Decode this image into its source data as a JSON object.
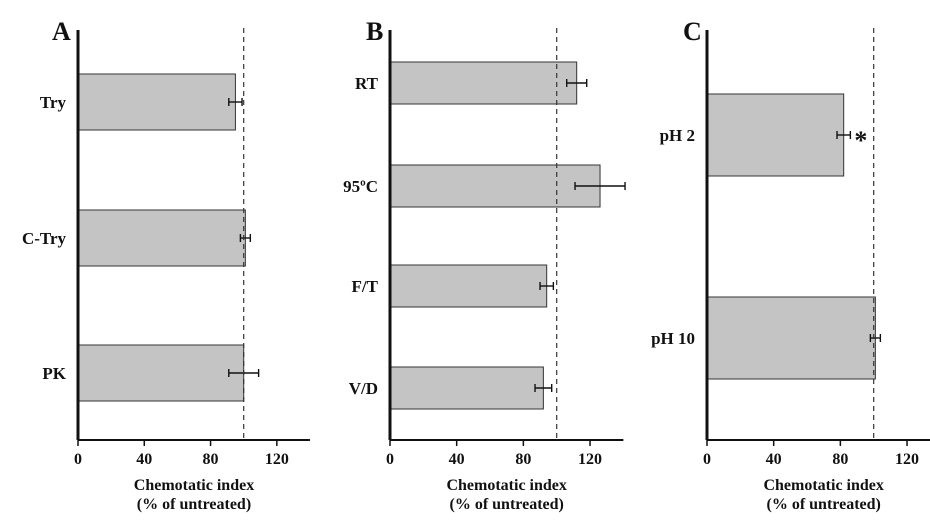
{
  "chart_data": [
    {
      "type": "bar",
      "orientation": "horizontal",
      "panel": "A",
      "categories": [
        "Try",
        "C-Try",
        "PK"
      ],
      "values": [
        95,
        101,
        100
      ],
      "errors": [
        4,
        3,
        9
      ],
      "significant": [
        "",
        "",
        ""
      ],
      "xlabel_line1": "Chemotatic index",
      "xlabel_line2": "(% of untreated)",
      "xlim": [
        0,
        140
      ],
      "xticks": [
        0,
        40,
        80,
        120
      ],
      "reference_line": 100,
      "bar_color": "#c4c4c4"
    },
    {
      "type": "bar",
      "orientation": "horizontal",
      "panel": "B",
      "categories": [
        "RT",
        "95ºC",
        "F/T",
        "V/D"
      ],
      "values": [
        112,
        126,
        94,
        92
      ],
      "errors": [
        6,
        15,
        4,
        5
      ],
      "significant": [
        "",
        "",
        "",
        ""
      ],
      "xlabel_line1": "Chemotatic index",
      "xlabel_line2": "(% of untreated)",
      "xlim": [
        0,
        140
      ],
      "xticks": [
        0,
        40,
        80,
        120
      ],
      "reference_line": 100,
      "bar_color": "#c4c4c4"
    },
    {
      "type": "bar",
      "orientation": "horizontal",
      "panel": "C",
      "categories": [
        "pH 2",
        "pH 10"
      ],
      "values": [
        82,
        101
      ],
      "errors": [
        4,
        3
      ],
      "significant": [
        "*",
        ""
      ],
      "xlabel_line1": "Chemotatic index",
      "xlabel_line2": "(% of untreated)",
      "xlim": [
        0,
        140
      ],
      "xticks": [
        0,
        40,
        80,
        120
      ],
      "reference_line": 100,
      "bar_color": "#c4c4c4"
    }
  ]
}
